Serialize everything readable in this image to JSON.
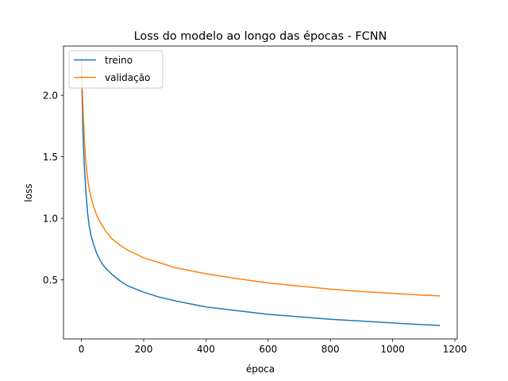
{
  "chart_data": {
    "type": "line",
    "title": "Loss do modelo ao longo das épocas - FCNN",
    "xlabel": "época",
    "ylabel": "loss",
    "xlim": [
      -57.5,
      1207.5
    ],
    "ylim": [
      0.02,
      2.4
    ],
    "xticks": [
      0,
      200,
      400,
      600,
      800,
      1000,
      1200
    ],
    "yticks": [
      0.5,
      1.0,
      1.5,
      2.0
    ],
    "xtick_labels": [
      "0",
      "200",
      "400",
      "600",
      "800",
      "1000",
      "1200"
    ],
    "ytick_labels": [
      "0.5",
      "1.0",
      "1.5",
      "2.0"
    ],
    "grid": false,
    "legend_position": "top-left",
    "series": [
      {
        "name": "treino",
        "color": "#1f77b4",
        "x": [
          0,
          5,
          10,
          15,
          20,
          25,
          30,
          40,
          50,
          60,
          70,
          80,
          100,
          125,
          150,
          200,
          250,
          300,
          400,
          500,
          600,
          700,
          800,
          900,
          1000,
          1100,
          1150
        ],
        "y": [
          2.28,
          1.68,
          1.4,
          1.2,
          1.04,
          0.94,
          0.87,
          0.78,
          0.71,
          0.66,
          0.62,
          0.59,
          0.54,
          0.49,
          0.45,
          0.4,
          0.36,
          0.33,
          0.28,
          0.25,
          0.22,
          0.2,
          0.18,
          0.165,
          0.15,
          0.135,
          0.13
        ]
      },
      {
        "name": "validação",
        "color": "#ff7f0e",
        "x": [
          0,
          5,
          10,
          15,
          20,
          25,
          30,
          40,
          50,
          60,
          70,
          80,
          100,
          125,
          150,
          200,
          250,
          300,
          400,
          500,
          600,
          700,
          800,
          900,
          1000,
          1100,
          1150
        ],
        "y": [
          2.3,
          1.9,
          1.62,
          1.44,
          1.32,
          1.24,
          1.18,
          1.09,
          1.02,
          0.97,
          0.93,
          0.89,
          0.83,
          0.78,
          0.74,
          0.68,
          0.64,
          0.6,
          0.55,
          0.51,
          0.475,
          0.45,
          0.425,
          0.405,
          0.39,
          0.375,
          0.37
        ]
      }
    ]
  }
}
